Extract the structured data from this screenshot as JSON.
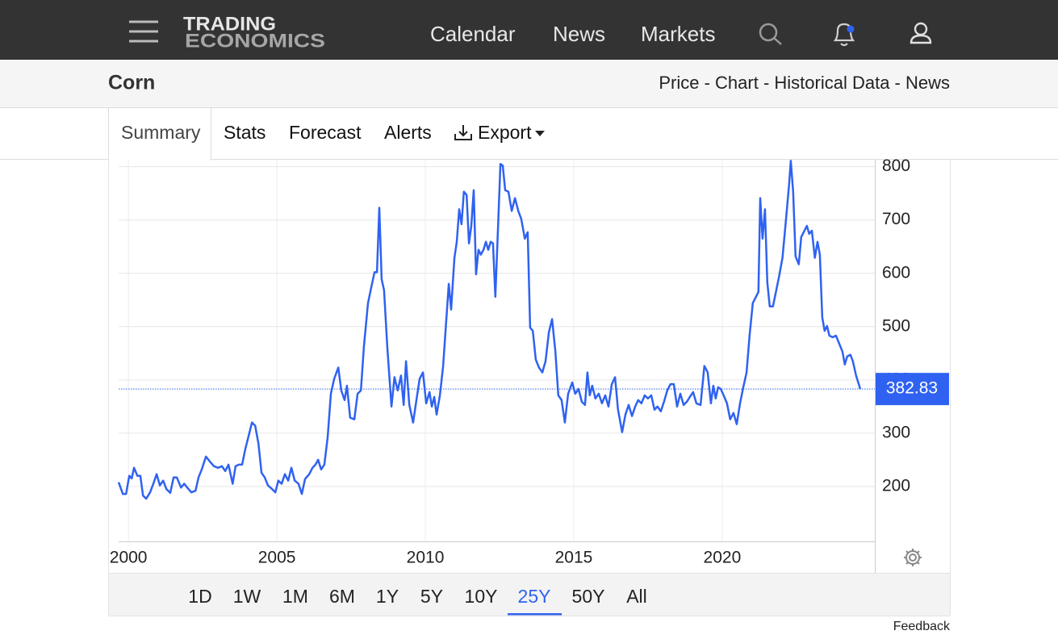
{
  "header": {
    "logo": [
      "TRADING",
      "ECONOMICS"
    ],
    "nav": [
      "Calendar",
      "News",
      "Markets"
    ]
  },
  "page": {
    "title": "Corn",
    "links": "Price - Chart - Historical Data - News"
  },
  "tabs": [
    "Summary",
    "Stats",
    "Forecast",
    "Alerts",
    "Export"
  ],
  "active_tab": 0,
  "chart_data": {
    "type": "line",
    "color": "#2f62f0",
    "grid": true,
    "x": [
      1999.67,
      1999.81,
      1999.92,
      2000.03,
      2000.11,
      2000.19,
      2000.3,
      2000.4,
      2000.49,
      2000.6,
      2000.73,
      2000.84,
      2000.95,
      2001.06,
      2001.17,
      2001.28,
      2001.41,
      2001.52,
      2001.63,
      2001.77,
      2001.88,
      2001.98,
      2002.12,
      2002.26,
      2002.36,
      2002.47,
      2002.61,
      2002.74,
      2002.88,
      2003.02,
      2003.15,
      2003.26,
      2003.37,
      2003.51,
      2003.61,
      2003.72,
      2003.83,
      2003.94,
      2004.05,
      2004.16,
      2004.27,
      2004.38,
      2004.48,
      2004.59,
      2004.7,
      2004.84,
      2004.95,
      2005.05,
      2005.16,
      2005.27,
      2005.38,
      2005.49,
      2005.6,
      2005.73,
      2005.84,
      2005.95,
      2006.09,
      2006.2,
      2006.3,
      2006.39,
      2006.49,
      2006.6,
      2006.71,
      2006.82,
      2006.93,
      2007.07,
      2007.17,
      2007.28,
      2007.36,
      2007.47,
      2007.61,
      2007.72,
      2007.83,
      2007.93,
      2008.07,
      2008.18,
      2008.29,
      2008.37,
      2008.45,
      2008.53,
      2008.61,
      2008.72,
      2008.86,
      2008.96,
      2009.07,
      2009.18,
      2009.27,
      2009.35,
      2009.46,
      2009.59,
      2009.7,
      2009.81,
      2009.92,
      2010.03,
      2010.14,
      2010.22,
      2010.3,
      2010.38,
      2010.49,
      2010.6,
      2010.7,
      2010.79,
      2010.87,
      2010.98,
      2011.06,
      2011.14,
      2011.22,
      2011.3,
      2011.39,
      2011.47,
      2011.55,
      2011.63,
      2011.71,
      2011.79,
      2011.87,
      2011.96,
      2012.04,
      2012.12,
      2012.2,
      2012.28,
      2012.36,
      2012.45,
      2012.53,
      2012.61,
      2012.69,
      2012.8,
      2012.91,
      2013.02,
      2013.13,
      2013.23,
      2013.35,
      2013.45,
      2013.53,
      2013.62,
      2013.72,
      2013.83,
      2013.94,
      2014.05,
      2014.16,
      2014.27,
      2014.38,
      2014.48,
      2014.59,
      2014.7,
      2014.81,
      2014.95,
      2015.05,
      2015.16,
      2015.27,
      2015.38,
      2015.46,
      2015.54,
      2015.62,
      2015.73,
      2015.84,
      2015.95,
      2016.06,
      2016.17,
      2016.28,
      2016.39,
      2016.49,
      2016.63,
      2016.74,
      2016.85,
      2016.96,
      2017.07,
      2017.17,
      2017.28,
      2017.39,
      2017.5,
      2017.61,
      2017.72,
      2017.82,
      2017.93,
      2018.04,
      2018.15,
      2018.26,
      2018.37,
      2018.48,
      2018.59,
      2018.7,
      2018.81,
      2018.91,
      2019.02,
      2019.13,
      2019.27,
      2019.4,
      2019.51,
      2019.62,
      2019.7,
      2019.78,
      2019.86,
      2019.95,
      2020.05,
      2020.16,
      2020.27,
      2020.38,
      2020.49,
      2020.6,
      2020.71,
      2020.82,
      2020.92,
      2021.03,
      2021.14,
      2021.22,
      2021.28,
      2021.36,
      2021.44,
      2021.52,
      2021.6,
      2021.71,
      2021.82,
      2021.92,
      2022.03,
      2022.14,
      2022.25,
      2022.31,
      2022.39,
      2022.47,
      2022.58,
      2022.66,
      2022.77,
      2022.85,
      2022.93,
      2023.02,
      2023.12,
      2023.21,
      2023.29,
      2023.37,
      2023.45,
      2023.53,
      2023.61,
      2023.72,
      2023.83,
      2023.94,
      2024.05,
      2024.13,
      2024.21,
      2024.32,
      2024.4,
      2024.51,
      2024.65
    ],
    "values": [
      208,
      186,
      186,
      220,
      215,
      235,
      220,
      220,
      183,
      177,
      189,
      205,
      223,
      202,
      211,
      195,
      188,
      217,
      217,
      198,
      205,
      198,
      189,
      192,
      217,
      232,
      256,
      247,
      238,
      235,
      238,
      229,
      241,
      205,
      238,
      241,
      241,
      271,
      295,
      320,
      314,
      280,
      226,
      217,
      202,
      195,
      189,
      211,
      205,
      223,
      211,
      235,
      211,
      205,
      186,
      214,
      223,
      235,
      241,
      250,
      232,
      241,
      292,
      374,
      402,
      423,
      380,
      362,
      389,
      329,
      326,
      374,
      380,
      462,
      544,
      574,
      602,
      602,
      723,
      589,
      568,
      462,
      350,
      405,
      380,
      408,
      353,
      435,
      353,
      320,
      362,
      402,
      414,
      356,
      377,
      350,
      368,
      335,
      371,
      426,
      508,
      580,
      532,
      629,
      659,
      720,
      692,
      753,
      747,
      656,
      689,
      756,
      598,
      644,
      635,
      644,
      659,
      644,
      659,
      656,
      556,
      689,
      805,
      802,
      756,
      753,
      717,
      741,
      717,
      702,
      665,
      677,
      498,
      492,
      438,
      423,
      414,
      435,
      489,
      514,
      453,
      371,
      362,
      320,
      374,
      395,
      374,
      383,
      359,
      353,
      414,
      371,
      389,
      365,
      374,
      356,
      371,
      350,
      392,
      405,
      344,
      302,
      335,
      353,
      332,
      350,
      362,
      356,
      371,
      365,
      371,
      344,
      350,
      341,
      359,
      380,
      392,
      392,
      350,
      374,
      353,
      359,
      368,
      377,
      356,
      353,
      426,
      414,
      356,
      389,
      365,
      386,
      383,
      371,
      356,
      326,
      338,
      317,
      356,
      386,
      414,
      483,
      544,
      556,
      565,
      741,
      665,
      720,
      583,
      538,
      538,
      568,
      595,
      629,
      695,
      765,
      811,
      753,
      632,
      617,
      668,
      680,
      689,
      674,
      680,
      629,
      659,
      635,
      517,
      492,
      501,
      483,
      480,
      483,
      468,
      453,
      429,
      444,
      447,
      435,
      408,
      382.83
    ],
    "xlim": [
      1999.67,
      2025.14
    ],
    "ylim": [
      100,
      813
    ],
    "xticks": [
      2000,
      2005,
      2010,
      2015,
      2020
    ],
    "yticks": [
      200,
      300,
      400,
      500,
      600,
      700,
      800
    ]
  },
  "ranges": [
    "1D",
    "1W",
    "1M",
    "6M",
    "1Y",
    "5Y",
    "10Y",
    "25Y",
    "50Y",
    "All"
  ],
  "active_range": 7,
  "feedback": "Feedback"
}
